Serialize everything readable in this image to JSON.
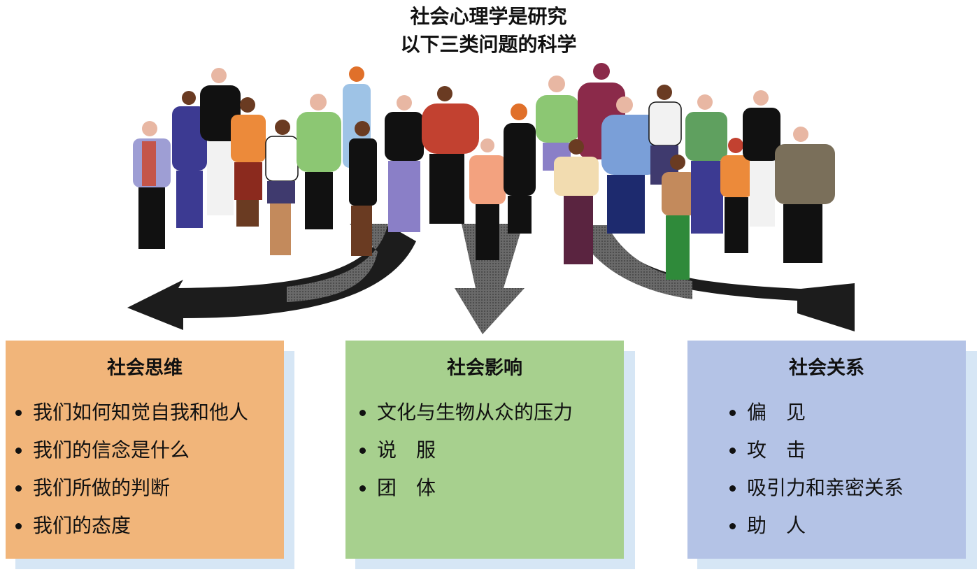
{
  "title": {
    "line1": "社会心理学是研究",
    "line2": "以下三类问题的科学"
  },
  "cards": [
    {
      "id": "social-thinking",
      "color": "#f1b57a",
      "heading": "社会思维",
      "items": [
        "我们如何知觉自我和他人",
        "我们的信念是什么",
        "我们所做的判断",
        "我们的态度"
      ]
    },
    {
      "id": "social-influence",
      "color": "#a7d08e",
      "heading": "社会影响",
      "items": [
        "文化与生物从众的压力",
        "说　服",
        "团　体"
      ]
    },
    {
      "id": "social-relations",
      "color": "#b4c3e6",
      "heading": "社会关系",
      "items": [
        "偏　见",
        "攻　击",
        "吸引力和亲密关系",
        "助　人"
      ]
    }
  ],
  "colors": {
    "arrow_dark": "#1c1c1c",
    "arrow_mid": "#5e5e5e",
    "card_shadow": "#d6e6f5"
  },
  "illustration": "group of people"
}
